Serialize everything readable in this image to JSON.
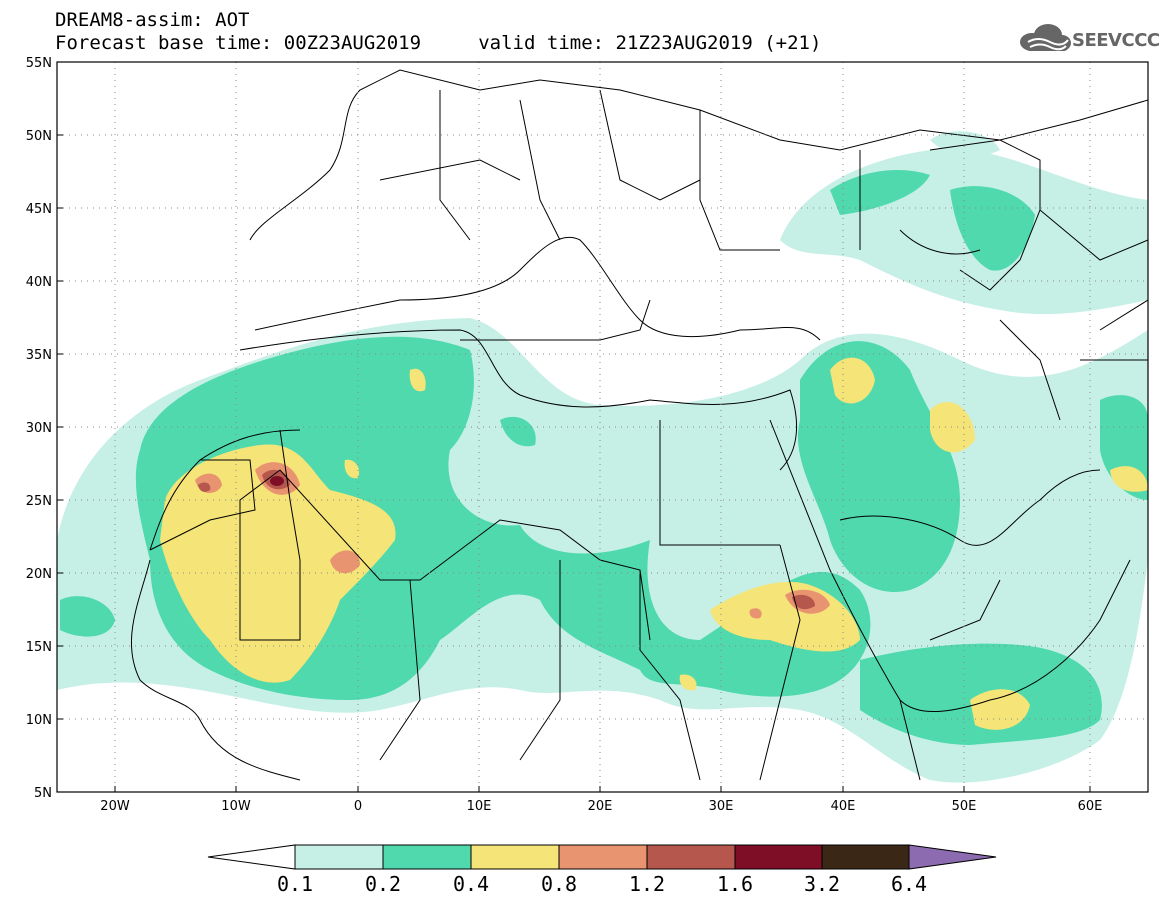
{
  "title_line1": "DREAM8-assim: AOT",
  "title_line2": "Forecast base time: 00Z23AUG2019     valid time: 21Z23AUG2019 (+21)",
  "logo_text": "SEEVCCC",
  "lat_ticks": [
    "55N",
    "50N",
    "45N",
    "40N",
    "35N",
    "30N",
    "25N",
    "20N",
    "15N",
    "10N",
    "5N"
  ],
  "lon_ticks": [
    "20W",
    "10W",
    "0",
    "10E",
    "20E",
    "30E",
    "40E",
    "50E",
    "60E"
  ],
  "colorbar": {
    "labels": [
      "0.1",
      "0.2",
      "0.4",
      "0.8",
      "1.2",
      "1.6",
      "3.2",
      "6.4"
    ],
    "colors": [
      "#ffffff",
      "#c6f0e6",
      "#4fd9ad",
      "#f5e477",
      "#e99470",
      "#b5574c",
      "#7e0e26",
      "#3a2716",
      "#8c6bb1"
    ]
  }
}
